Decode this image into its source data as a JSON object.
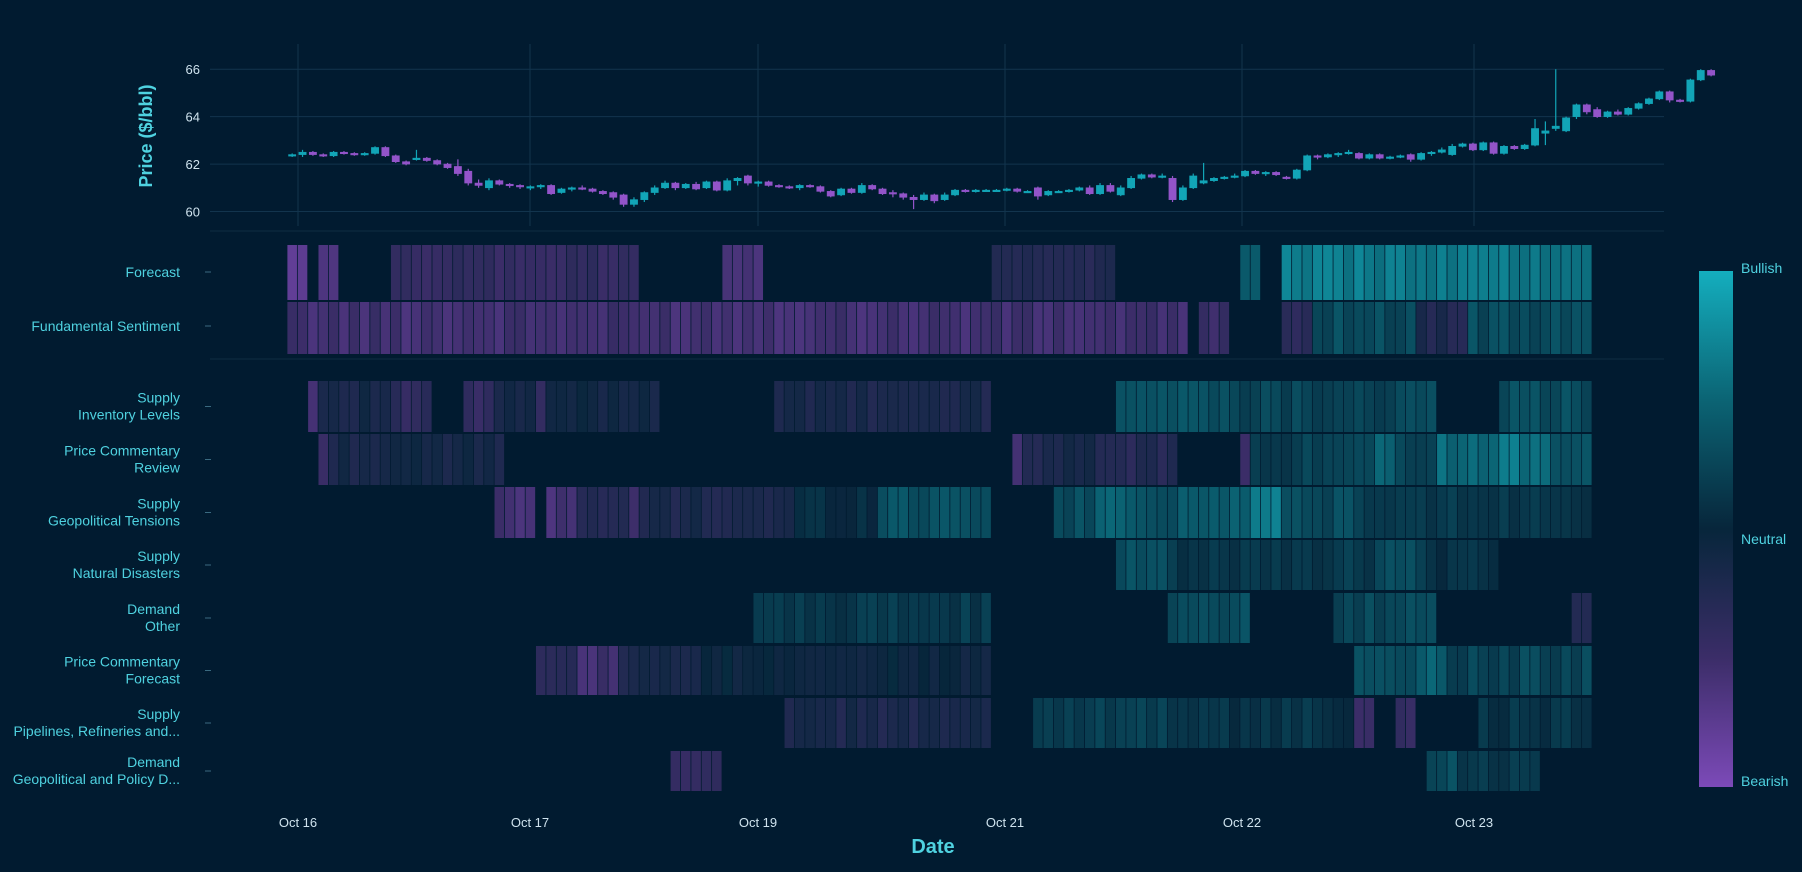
{
  "chart_data": {
    "type": "candlestick+heatmap",
    "price_panel": {
      "ylabel": "Price ($/bbl)",
      "yticks": [
        60,
        62,
        64,
        66
      ],
      "ylim": [
        59.6,
        66.6
      ],
      "candles": [
        [
          62.35,
          62.45,
          62.3,
          62.4
        ],
        [
          62.4,
          62.6,
          62.3,
          62.5
        ],
        [
          62.5,
          62.55,
          62.35,
          62.4
        ],
        [
          62.4,
          62.45,
          62.3,
          62.35
        ],
        [
          62.35,
          62.55,
          62.3,
          62.5
        ],
        [
          62.5,
          62.55,
          62.4,
          62.45
        ],
        [
          62.45,
          62.5,
          62.35,
          62.4
        ],
        [
          62.4,
          62.5,
          62.35,
          62.45
        ],
        [
          62.45,
          62.75,
          62.4,
          62.7
        ],
        [
          62.7,
          62.75,
          62.3,
          62.35
        ],
        [
          62.35,
          62.4,
          62.05,
          62.1
        ],
        [
          62.1,
          62.15,
          61.95,
          62.0
        ],
        [
          62.2,
          62.6,
          62.15,
          62.25
        ],
        [
          62.25,
          62.3,
          62.1,
          62.15
        ],
        [
          62.15,
          62.2,
          61.95,
          62.0
        ],
        [
          62.0,
          62.05,
          61.8,
          61.85
        ],
        [
          61.9,
          62.2,
          61.5,
          61.6
        ],
        [
          61.7,
          61.8,
          61.1,
          61.2
        ],
        [
          61.2,
          61.35,
          61.0,
          61.1
        ],
        [
          61.0,
          61.4,
          60.9,
          61.3
        ],
        [
          61.3,
          61.35,
          61.1,
          61.15
        ],
        [
          61.15,
          61.2,
          61.0,
          61.1
        ],
        [
          61.1,
          61.15,
          60.95,
          61.05
        ],
        [
          61.0,
          61.1,
          60.9,
          61.05
        ],
        [
          61.05,
          61.15,
          60.95,
          61.1
        ],
        [
          61.1,
          61.15,
          60.7,
          60.75
        ],
        [
          60.8,
          61.0,
          60.75,
          60.95
        ],
        [
          60.95,
          61.05,
          60.85,
          61.0
        ],
        [
          61.0,
          61.1,
          60.9,
          60.95
        ],
        [
          60.95,
          61.0,
          60.8,
          60.85
        ],
        [
          60.85,
          60.9,
          60.7,
          60.75
        ],
        [
          60.8,
          60.85,
          60.5,
          60.6
        ],
        [
          60.7,
          60.75,
          60.2,
          60.3
        ],
        [
          60.3,
          60.6,
          60.2,
          60.5
        ],
        [
          60.5,
          60.85,
          60.4,
          60.8
        ],
        [
          60.8,
          61.1,
          60.7,
          61.0
        ],
        [
          61.0,
          61.3,
          60.95,
          61.2
        ],
        [
          61.2,
          61.25,
          60.9,
          61.0
        ],
        [
          61.0,
          61.2,
          60.95,
          61.15
        ],
        [
          61.15,
          61.25,
          60.9,
          60.95
        ],
        [
          61.0,
          61.3,
          60.95,
          61.25
        ],
        [
          61.25,
          61.3,
          60.85,
          60.9
        ],
        [
          60.9,
          61.4,
          60.85,
          61.3
        ],
        [
          61.3,
          61.45,
          61.1,
          61.4
        ],
        [
          61.5,
          61.55,
          61.1,
          61.2
        ],
        [
          61.2,
          61.3,
          61.05,
          61.25
        ],
        [
          61.25,
          61.3,
          61.05,
          61.1
        ],
        [
          61.1,
          61.15,
          61.0,
          61.05
        ],
        [
          61.05,
          61.1,
          60.95,
          61.0
        ],
        [
          61.0,
          61.15,
          60.9,
          61.1
        ],
        [
          61.1,
          61.15,
          61.0,
          61.05
        ],
        [
          61.05,
          61.1,
          60.8,
          60.85
        ],
        [
          60.85,
          60.9,
          60.6,
          60.65
        ],
        [
          60.7,
          61.0,
          60.65,
          60.95
        ],
        [
          60.95,
          61.0,
          60.75,
          60.8
        ],
        [
          60.8,
          61.2,
          60.75,
          61.1
        ],
        [
          61.1,
          61.15,
          60.9,
          60.95
        ],
        [
          60.95,
          61.0,
          60.7,
          60.75
        ],
        [
          60.8,
          60.9,
          60.6,
          60.75
        ],
        [
          60.75,
          60.8,
          60.5,
          60.6
        ],
        [
          60.6,
          60.7,
          60.1,
          60.5
        ],
        [
          60.5,
          60.8,
          60.45,
          60.7
        ],
        [
          60.7,
          60.75,
          60.35,
          60.45
        ],
        [
          60.5,
          60.8,
          60.45,
          60.7
        ],
        [
          60.7,
          60.95,
          60.65,
          60.9
        ],
        [
          60.9,
          60.95,
          60.8,
          60.85
        ],
        [
          60.85,
          60.95,
          60.8,
          60.9
        ],
        [
          60.9,
          60.95,
          60.85,
          60.9
        ],
        [
          60.9,
          60.95,
          60.85,
          60.9
        ],
        [
          60.9,
          61.0,
          60.85,
          60.95
        ],
        [
          60.95,
          61.0,
          60.8,
          60.85
        ],
        [
          60.85,
          60.9,
          60.8,
          60.85
        ],
        [
          61.0,
          61.05,
          60.5,
          60.65
        ],
        [
          60.7,
          60.9,
          60.65,
          60.85
        ],
        [
          60.85,
          60.9,
          60.8,
          60.85
        ],
        [
          60.85,
          60.95,
          60.8,
          60.9
        ],
        [
          60.9,
          61.05,
          60.85,
          61.0
        ],
        [
          61.0,
          61.1,
          60.7,
          60.75
        ],
        [
          60.75,
          61.2,
          60.7,
          61.1
        ],
        [
          61.1,
          61.2,
          60.8,
          60.85
        ],
        [
          60.7,
          61.1,
          60.65,
          61.0
        ],
        [
          61.0,
          61.5,
          60.95,
          61.4
        ],
        [
          61.4,
          61.6,
          61.35,
          61.55
        ],
        [
          61.55,
          61.6,
          61.4,
          61.45
        ],
        [
          61.45,
          61.6,
          61.4,
          61.5
        ],
        [
          61.4,
          61.5,
          60.4,
          60.5
        ],
        [
          60.5,
          61.1,
          60.45,
          61.0
        ],
        [
          61.0,
          61.6,
          60.95,
          61.5
        ],
        [
          61.2,
          62.05,
          61.15,
          61.3
        ],
        [
          61.3,
          61.45,
          61.25,
          61.4
        ],
        [
          61.4,
          61.5,
          61.35,
          61.45
        ],
        [
          61.45,
          61.6,
          61.4,
          61.5
        ],
        [
          61.5,
          61.75,
          61.45,
          61.7
        ],
        [
          61.7,
          61.75,
          61.55,
          61.6
        ],
        [
          61.6,
          61.7,
          61.5,
          61.65
        ],
        [
          61.65,
          61.7,
          61.5,
          61.55
        ],
        [
          61.45,
          61.5,
          61.35,
          61.4
        ],
        [
          61.4,
          61.8,
          61.35,
          61.75
        ],
        [
          61.75,
          62.4,
          61.7,
          62.35
        ],
        [
          62.35,
          62.4,
          62.2,
          62.3
        ],
        [
          62.3,
          62.45,
          62.25,
          62.4
        ],
        [
          62.4,
          62.5,
          62.3,
          62.45
        ],
        [
          62.45,
          62.6,
          62.4,
          62.5
        ],
        [
          62.45,
          62.5,
          62.2,
          62.25
        ],
        [
          62.25,
          62.45,
          62.2,
          62.4
        ],
        [
          62.4,
          62.45,
          62.2,
          62.25
        ],
        [
          62.25,
          62.35,
          62.2,
          62.3
        ],
        [
          62.3,
          62.4,
          62.25,
          62.35
        ],
        [
          62.4,
          62.45,
          62.1,
          62.2
        ],
        [
          62.2,
          62.5,
          62.15,
          62.45
        ],
        [
          62.45,
          62.55,
          62.35,
          62.5
        ],
        [
          62.5,
          62.7,
          62.45,
          62.6
        ],
        [
          62.4,
          62.85,
          62.35,
          62.75
        ],
        [
          62.75,
          62.9,
          62.7,
          62.85
        ],
        [
          62.85,
          62.9,
          62.55,
          62.6
        ],
        [
          62.6,
          62.95,
          62.55,
          62.9
        ],
        [
          62.9,
          62.95,
          62.4,
          62.45
        ],
        [
          62.45,
          62.8,
          62.4,
          62.75
        ],
        [
          62.75,
          62.8,
          62.6,
          62.65
        ],
        [
          62.65,
          62.85,
          62.6,
          62.8
        ],
        [
          62.8,
          63.9,
          62.75,
          63.5
        ],
        [
          63.3,
          63.8,
          62.8,
          63.4
        ],
        [
          63.5,
          66.0,
          63.4,
          63.6
        ],
        [
          63.4,
          64.0,
          63.35,
          63.95
        ],
        [
          64.0,
          64.55,
          63.9,
          64.5
        ],
        [
          64.5,
          64.55,
          64.1,
          64.2
        ],
        [
          64.3,
          64.4,
          63.95,
          64.0
        ],
        [
          64.0,
          64.25,
          63.95,
          64.2
        ],
        [
          64.2,
          64.3,
          64.05,
          64.1
        ],
        [
          64.1,
          64.4,
          64.05,
          64.35
        ],
        [
          64.35,
          64.6,
          64.3,
          64.55
        ],
        [
          64.55,
          64.8,
          64.5,
          64.75
        ],
        [
          64.75,
          65.1,
          64.7,
          65.05
        ],
        [
          65.05,
          65.1,
          64.6,
          64.7
        ],
        [
          64.7,
          64.75,
          64.6,
          64.65
        ],
        [
          64.65,
          65.6,
          64.6,
          65.55
        ],
        [
          65.55,
          66.0,
          65.5,
          65.95
        ],
        [
          65.95,
          66.0,
          65.7,
          65.75
        ]
      ]
    },
    "heatmap": {
      "categories_top": [
        "Forecast",
        "Fundamental Sentiment"
      ],
      "categories": [
        [
          "Supply",
          "Inventory Levels"
        ],
        [
          "Price Commentary",
          "Review"
        ],
        [
          "Supply",
          "Geopolitical Tensions"
        ],
        [
          "Supply",
          "Natural Disasters"
        ],
        [
          "Demand",
          "Other"
        ],
        [
          "Price Commentary",
          "Forecast"
        ],
        [
          "Supply",
          "Pipelines, Refineries and..."
        ],
        [
          "Demand",
          "Geopolitical and Policy D..."
        ]
      ],
      "colorscale": [
        "#7c4ab8",
        "#3b2d68",
        "#07263b",
        "#0b6474",
        "#14aebe"
      ],
      "zrange": [
        -1,
        1
      ],
      "rows": [
        [
          [
            0,
            1,
            -0.7
          ],
          [
            3,
            4,
            -0.6
          ],
          [
            10,
            33,
            -0.45
          ],
          [
            42,
            45,
            -0.6
          ],
          [
            68,
            79,
            -0.25
          ],
          [
            92,
            93,
            0.5
          ],
          [
            96,
            125,
            0.65
          ]
        ],
        [
          [
            0,
            86,
            -0.55
          ],
          [
            88,
            90,
            -0.45
          ],
          [
            96,
            98,
            -0.3
          ],
          [
            99,
            108,
            0.3
          ],
          [
            109,
            113,
            -0.25
          ],
          [
            114,
            125,
            0.3
          ]
        ],
        [
          [
            2,
            3,
            -0.55
          ],
          [
            3,
            12,
            -0.15
          ],
          [
            10,
            13,
            -0.4
          ],
          [
            17,
            20,
            -0.45
          ],
          [
            20,
            23,
            -0.15
          ],
          [
            24,
            25,
            -0.5
          ],
          [
            25,
            35,
            -0.1
          ],
          [
            47,
            67,
            -0.2
          ],
          [
            80,
            87,
            0.35
          ],
          [
            87,
            92,
            0.35
          ],
          [
            92,
            110,
            0.25
          ],
          [
            117,
            125,
            0.3
          ]
        ],
        [
          [
            3,
            4,
            -0.55
          ],
          [
            4,
            20,
            -0.15
          ],
          [
            70,
            71,
            -0.65
          ],
          [
            71,
            78,
            -0.2
          ],
          [
            78,
            85,
            -0.3
          ],
          [
            92,
            93,
            -0.5
          ],
          [
            93,
            125,
            0.2
          ],
          [
            105,
            106,
            0.45
          ],
          [
            111,
            117,
            0.55
          ],
          [
            117,
            119,
            0.7
          ],
          [
            119,
            122,
            0.5
          ],
          [
            122,
            125,
            0.3
          ]
        ],
        [
          [
            20,
            23,
            -0.55
          ],
          [
            25,
            28,
            -0.6
          ],
          [
            28,
            32,
            -0.3
          ],
          [
            33,
            34,
            -0.5
          ],
          [
            34,
            49,
            -0.2
          ],
          [
            49,
            57,
            0.05
          ],
          [
            57,
            67,
            0.35
          ],
          [
            74,
            78,
            0.3
          ],
          [
            78,
            83,
            0.45
          ],
          [
            83,
            86,
            0.3
          ],
          [
            86,
            93,
            0.45
          ],
          [
            93,
            96,
            0.65
          ],
          [
            96,
            103,
            0.3
          ],
          [
            103,
            125,
            0.15
          ]
        ],
        [
          [
            80,
            85,
            0.35
          ],
          [
            85,
            105,
            0.15
          ],
          [
            105,
            110,
            0.3
          ],
          [
            110,
            116,
            0.1
          ]
        ],
        [
          [
            45,
            67,
            0.15
          ],
          [
            85,
            92,
            0.3
          ],
          [
            101,
            110,
            0.25
          ],
          [
            137,
            138,
            -0.3
          ],
          [
            124,
            125,
            -0.3
          ]
        ],
        [
          [
            24,
            28,
            -0.3
          ],
          [
            28,
            32,
            -0.55
          ],
          [
            32,
            40,
            -0.2
          ],
          [
            40,
            67,
            -0.05
          ],
          [
            103,
            109,
            0.3
          ],
          [
            109,
            112,
            0.45
          ],
          [
            112,
            125,
            0.25
          ]
        ],
        [
          [
            48,
            67,
            -0.2
          ],
          [
            72,
            86,
            0.2
          ],
          [
            86,
            103,
            0.1
          ],
          [
            103,
            104,
            -0.45
          ],
          [
            107,
            108,
            -0.45
          ],
          [
            115,
            125,
            0.1
          ]
        ],
        [
          [
            37,
            41,
            -0.4
          ],
          [
            110,
            113,
            0.3
          ],
          [
            113,
            120,
            0.15
          ]
        ]
      ]
    },
    "xticks": [
      "Oct 16",
      "Oct 17",
      "Oct 19",
      "Oct 21",
      "Oct 22",
      "Oct 23"
    ],
    "xlabel": "Date",
    "colorbar": {
      "labels": [
        "Bullish",
        "Neutral",
        "Bearish"
      ]
    }
  }
}
